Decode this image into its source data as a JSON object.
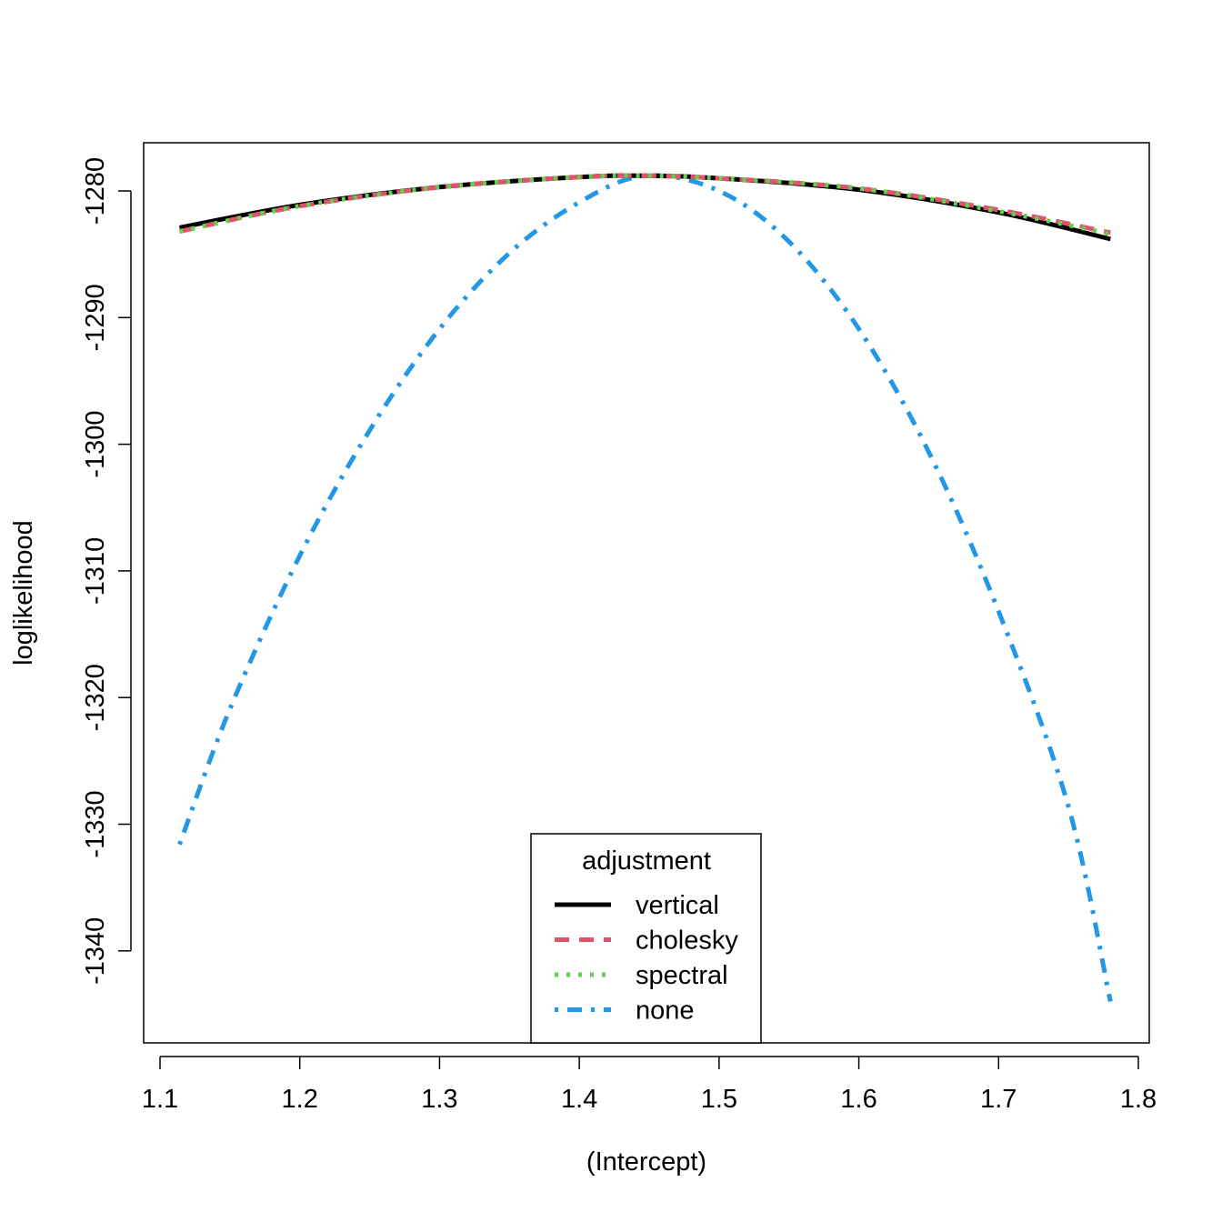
{
  "chart_data": {
    "type": "line",
    "title": "",
    "xlabel": "(Intercept)",
    "ylabel": "loglikelihood",
    "xlim": [
      1.1,
      1.8
    ],
    "ylim": [
      -1346,
      -1277
    ],
    "x_ticks": [
      "1.1",
      "1.2",
      "1.3",
      "1.4",
      "1.5",
      "1.6",
      "1.7",
      "1.8"
    ],
    "y_ticks": [
      "-1280",
      "-1290",
      "-1300",
      "-1310",
      "-1320",
      "-1330",
      "-1340"
    ],
    "grid": false,
    "legend": {
      "title": "adjustment",
      "placement": "bottom-center",
      "entries": [
        "vertical",
        "cholesky",
        "spectral",
        "none"
      ]
    },
    "series": [
      {
        "name": "vertical",
        "color": "#000000",
        "style": "solid",
        "x": [
          1.114,
          1.2,
          1.3,
          1.4,
          1.447,
          1.5,
          1.6,
          1.7,
          1.78
        ],
        "y": [
          -1282.9,
          -1281.1,
          -1279.7,
          -1278.9,
          -1278.8,
          -1279.0,
          -1279.9,
          -1281.7,
          -1283.8
        ]
      },
      {
        "name": "cholesky",
        "color": "#DF536B",
        "style": "dashed",
        "x": [
          1.114,
          1.2,
          1.3,
          1.4,
          1.447,
          1.5,
          1.6,
          1.7,
          1.78
        ],
        "y": [
          -1283.2,
          -1281.2,
          -1279.7,
          -1278.9,
          -1278.8,
          -1279.0,
          -1279.8,
          -1281.5,
          -1283.3
        ]
      },
      {
        "name": "spectral",
        "color": "#61D04F",
        "style": "dotted",
        "x": [
          1.114,
          1.2,
          1.3,
          1.4,
          1.447,
          1.5,
          1.6,
          1.7,
          1.78
        ],
        "y": [
          -1283.2,
          -1281.2,
          -1279.7,
          -1278.9,
          -1278.8,
          -1279.0,
          -1279.8,
          -1281.6,
          -1283.4
        ]
      },
      {
        "name": "none",
        "color": "#2297E6",
        "style": "dotdash",
        "x": [
          1.114,
          1.15,
          1.2,
          1.25,
          1.3,
          1.35,
          1.4,
          1.447,
          1.5,
          1.55,
          1.6,
          1.65,
          1.7,
          1.75,
          1.78
        ],
        "y": [
          -1331.6,
          -1320.9,
          -1308.8,
          -1298.9,
          -1290.9,
          -1284.9,
          -1280.9,
          -1278.8,
          -1280.0,
          -1284.0,
          -1290.9,
          -1300.6,
          -1313.2,
          -1328.6,
          -1344.0
        ]
      }
    ]
  }
}
